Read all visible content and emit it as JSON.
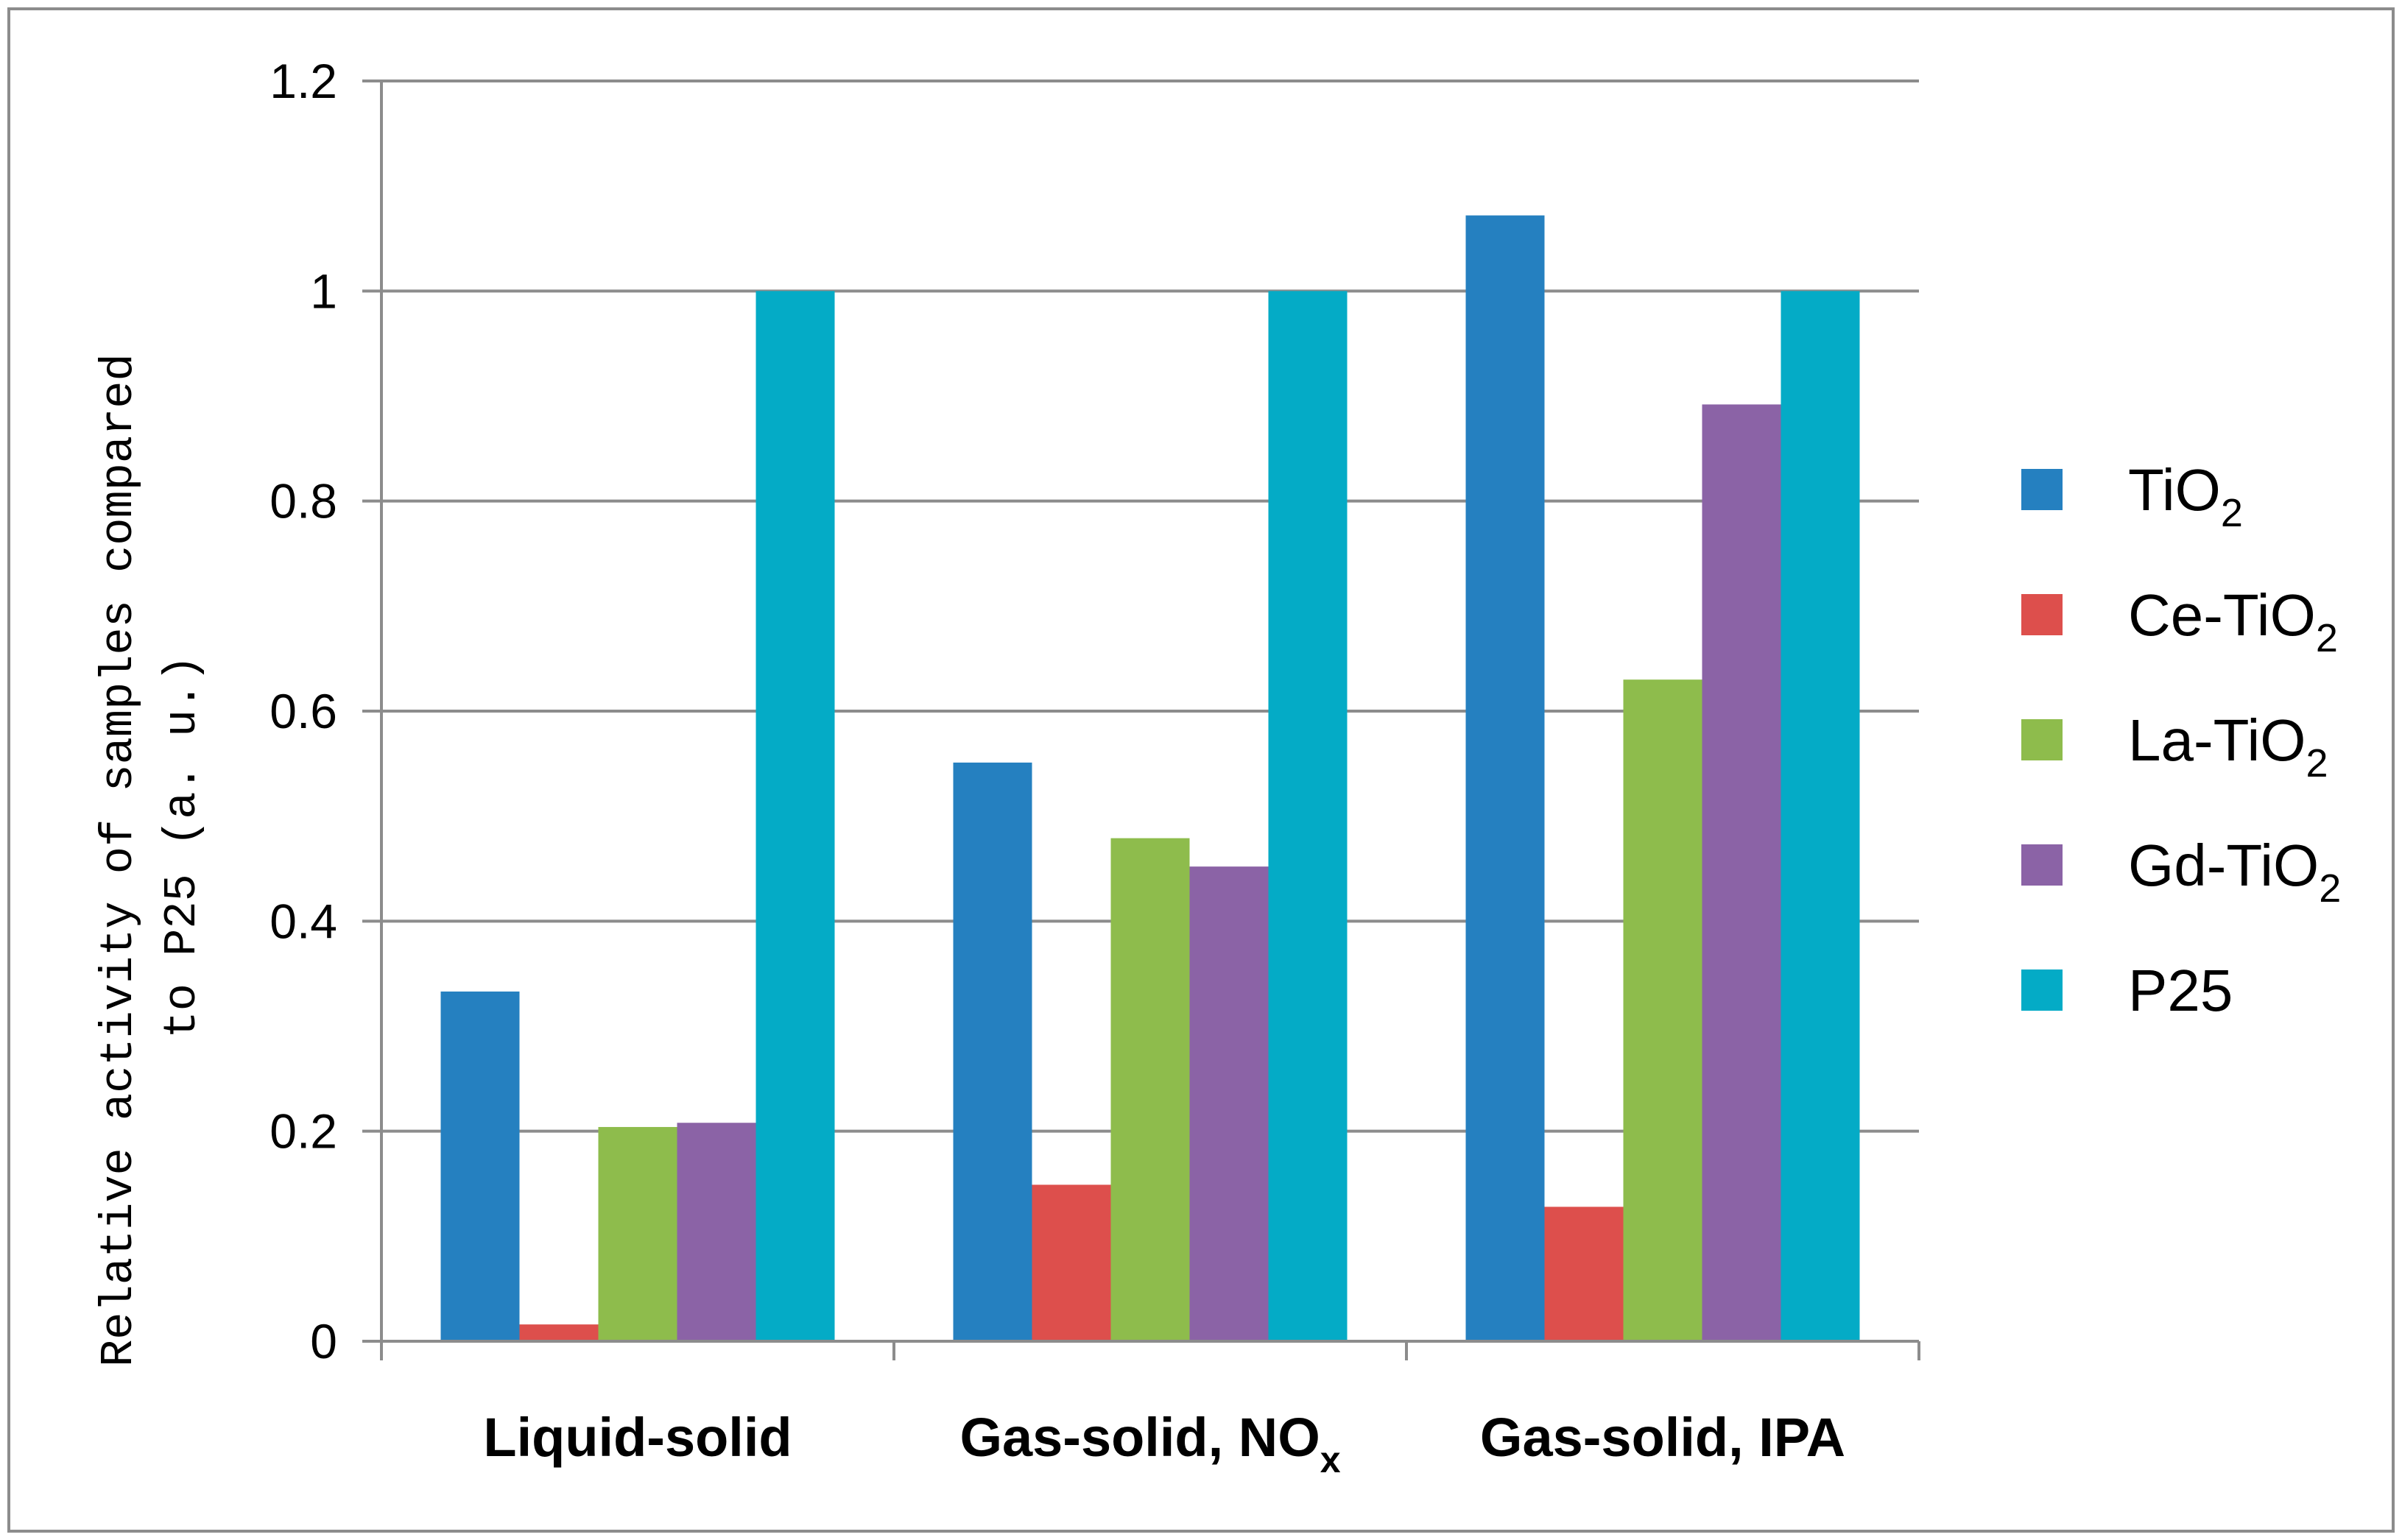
{
  "chart_data": {
    "type": "bar",
    "categories": [
      {
        "main": "Liquid-solid",
        "sub": ""
      },
      {
        "main": "Gas-solid, NO",
        "sub": "x"
      },
      {
        "main": "Gas-solid, IPA",
        "sub": ""
      }
    ],
    "series": [
      {
        "name": "TiO",
        "sub": "2",
        "color": "#2580c0",
        "values": [
          0.333,
          0.551,
          1.072
        ]
      },
      {
        "name": "Ce-TiO",
        "sub": "2",
        "color": "#dd4f4c",
        "values": [
          0.016,
          0.149,
          0.128
        ]
      },
      {
        "name": "La-TiO",
        "sub": "2",
        "color": "#8ebc4c",
        "values": [
          0.204,
          0.479,
          0.63
        ]
      },
      {
        "name": "Gd-TiO",
        "sub": "2",
        "color": "#8b63a6",
        "values": [
          0.208,
          0.452,
          0.892
        ]
      },
      {
        "name": "P25",
        "sub": "",
        "color": "#04abc6",
        "values": [
          1.0,
          1.0,
          1.0
        ]
      }
    ],
    "yticks": [
      "0",
      "0.2",
      "0.4",
      "0.6",
      "0.8",
      "1",
      "1.2"
    ],
    "ylim": [
      0,
      1.2
    ],
    "ylabel_line1": "Relative activity of samples compared",
    "ylabel_line2": "to P25 (a. u.)",
    "grid": true,
    "legend_position": "right"
  }
}
